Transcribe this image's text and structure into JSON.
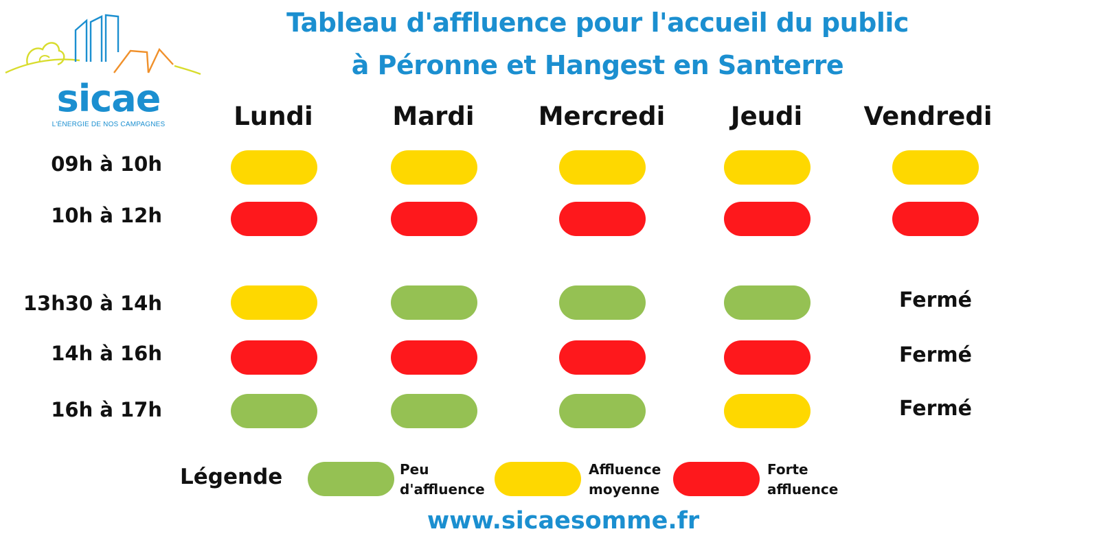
{
  "brand": {
    "name": "sicae",
    "tagline": "L'ÉNERGIE DE NOS CAMPAGNES",
    "color": "#1b8fd0"
  },
  "title": {
    "line1": "Tableau d'affluence pour l'accueil du public",
    "line2": "à Péronne et Hangest en Santerre"
  },
  "days": [
    "Lundi",
    "Mardi",
    "Mercredi",
    "Jeudi",
    "Vendredi"
  ],
  "slots": [
    "09h à 10h",
    "10h à 12h",
    "13h30 à 14h",
    "14h à 16h",
    "16h à 17h"
  ],
  "closed_label": "Fermé",
  "grid": [
    [
      "mid",
      "mid",
      "mid",
      "mid",
      "mid"
    ],
    [
      "high",
      "high",
      "high",
      "high",
      "high"
    ],
    [
      "mid",
      "low",
      "low",
      "low",
      "closed"
    ],
    [
      "high",
      "high",
      "high",
      "high",
      "closed"
    ],
    [
      "low",
      "low",
      "low",
      "mid",
      "closed"
    ]
  ],
  "legend": {
    "title": "Légende",
    "items": [
      {
        "level": "low",
        "line1": "Peu",
        "line2": "d'affluence"
      },
      {
        "level": "mid",
        "line1": "Affluence",
        "line2": "moyenne"
      },
      {
        "level": "high",
        "line1": "Forte",
        "line2": "affluence"
      }
    ]
  },
  "level_colors": {
    "low": "#95c153",
    "mid": "#fed800",
    "high": "#fe181c"
  },
  "website": "www.sicaesomme.fr"
}
